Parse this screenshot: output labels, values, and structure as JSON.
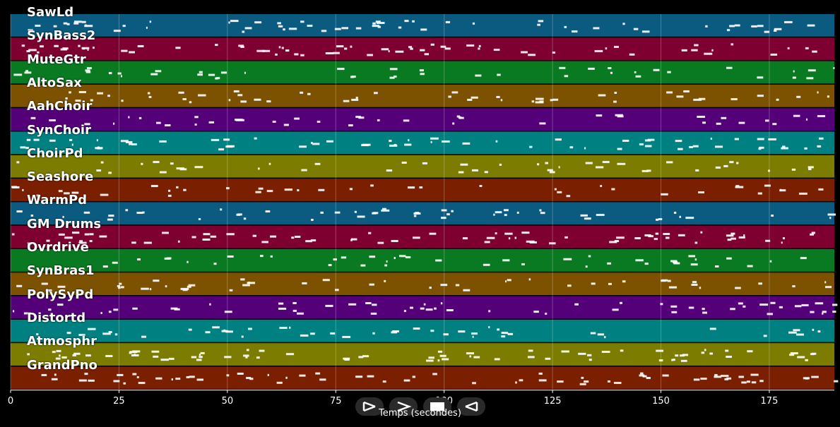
{
  "x_axis": {
    "title": "Temps (secondes)",
    "min": 0,
    "max": 190,
    "ticks": [
      0,
      50,
      75,
      100,
      125,
      150,
      175
    ],
    "tick_labels": [
      "0",
      "50",
      "75",
      "100",
      "125",
      "150",
      "175"
    ],
    "tick_labels_extra": [
      25
    ],
    "tick_labels_extra_text": [
      "25"
    ]
  },
  "tracks": [
    {
      "name": "SawLd",
      "color": "#0b5a80"
    },
    {
      "name": "SynBass2",
      "color": "#7e0030"
    },
    {
      "name": "MuteGtr",
      "color": "#0a7a22"
    },
    {
      "name": "AltoSax",
      "color": "#7c5200"
    },
    {
      "name": "AahChoir",
      "color": "#540078"
    },
    {
      "name": "SynChoir",
      "color": "#008080"
    },
    {
      "name": "ChoirPd",
      "color": "#7c7c00"
    },
    {
      "name": "Seashore",
      "color": "#7a2000"
    },
    {
      "name": "WarmPd",
      "color": "#0b5a80"
    },
    {
      "name": "GM Drums",
      "color": "#7e0030"
    },
    {
      "name": "Ovrdrive",
      "color": "#0a7a22"
    },
    {
      "name": "SynBras1",
      "color": "#7c5200"
    },
    {
      "name": "PolySyPd",
      "color": "#540078"
    },
    {
      "name": "Distortd",
      "color": "#008080"
    },
    {
      "name": "Atmosphr",
      "color": "#7c7c00"
    },
    {
      "name": "GrandPno",
      "color": "#7a2000"
    }
  ],
  "transport": [
    {
      "name": "play-button",
      "icon": "play-icon"
    },
    {
      "name": "forward-button",
      "icon": "forward-icon"
    },
    {
      "name": "stop-button",
      "icon": "stop-icon"
    },
    {
      "name": "rewind-button",
      "icon": "rewind-icon"
    }
  ]
}
